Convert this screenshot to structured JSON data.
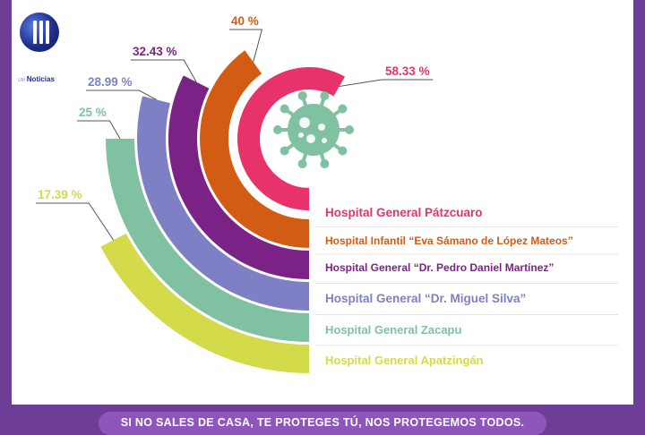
{
  "logo": {
    "prefix": "UM",
    "name": "Noticias"
  },
  "chart_data": {
    "type": "bar",
    "categories": [
      "Hospital General Pátzcuaro",
      "Hospital Infantil “Eva Sámano de López Mateos”",
      "Hospital General “Dr. Pedro Daniel Martínez”",
      "Hospital General “Dr. Miguel Silva”",
      "Hospital General Zacapu",
      "Hospital General Apatzingán"
    ],
    "values": [
      58.33,
      40,
      32.43,
      28.99,
      25,
      17.39
    ],
    "value_labels": [
      "58.33 %",
      "40 %",
      "32.43 %",
      "28.99 %",
      "25 %",
      "17.39 %"
    ],
    "colors": [
      "#e8336a",
      "#d25c13",
      "#7b2286",
      "#7f7fc6",
      "#7fc1a0",
      "#d3db4a"
    ],
    "style": "radial-arc"
  },
  "icon": "virus-icon",
  "footer": {
    "text": "SI NO SALES DE CASA, TE PROTEGES TÚ, NOS PROTEGEMOS TODOS."
  }
}
